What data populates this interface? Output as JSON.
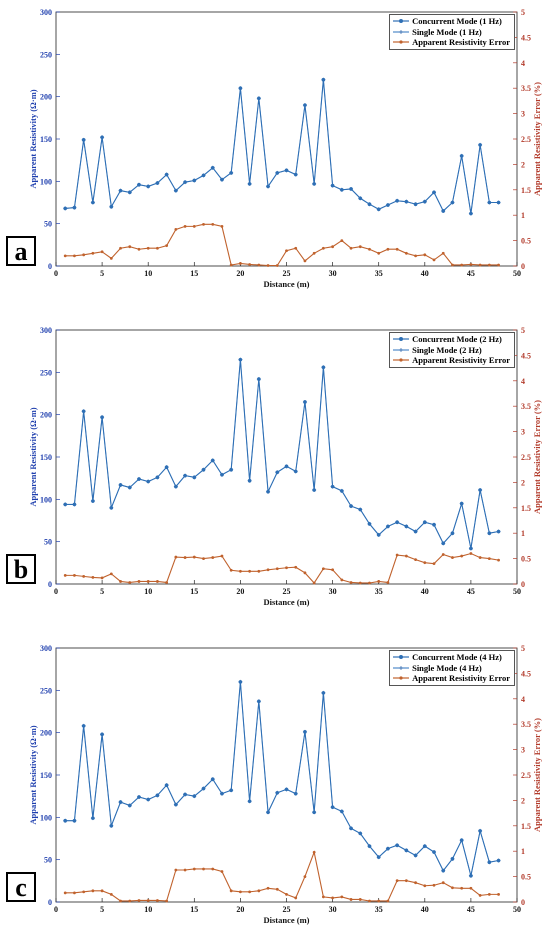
{
  "chart_data": [
    {
      "type": "line",
      "panel_label": "a",
      "xlabel": "Distance (m)",
      "ylabel": "Apparent Resistivity (Ω·m)",
      "y2label": "Apparent Resistivity Error (%)",
      "xlim": [
        0,
        50
      ],
      "ylim": [
        0,
        300
      ],
      "y2lim": [
        0,
        5
      ],
      "x_ticks": [
        0,
        5,
        10,
        15,
        20,
        25,
        30,
        35,
        40,
        45,
        50
      ],
      "y_ticks": [
        0,
        50,
        100,
        150,
        200,
        250,
        300
      ],
      "y2_ticks": [
        0,
        0.5,
        1,
        1.5,
        2,
        2.5,
        3,
        3.5,
        4,
        4.5,
        5
      ],
      "legend_position": "top-right",
      "x": [
        1,
        2,
        3,
        4,
        5,
        6,
        7,
        8,
        9,
        10,
        11,
        12,
        13,
        14,
        15,
        16,
        17,
        18,
        19,
        20,
        21,
        22,
        23,
        24,
        25,
        26,
        27,
        28,
        29,
        30,
        31,
        32,
        33,
        34,
        35,
        36,
        37,
        38,
        39,
        40,
        41,
        42,
        43,
        44,
        45,
        46,
        47,
        48
      ],
      "series": [
        {
          "name": "Concurrent Mode (1 Hz)",
          "axis": "left",
          "color": "#2e6fb5",
          "marker": "circle",
          "values": [
            68,
            69,
            149,
            75,
            152,
            70,
            89,
            87,
            96,
            94,
            98,
            108,
            89,
            99,
            101,
            107,
            116,
            102,
            110,
            210,
            97,
            198,
            94,
            110,
            113,
            108,
            190,
            97,
            220,
            95,
            90,
            91,
            80,
            73,
            67,
            72,
            77,
            76,
            73,
            76,
            87,
            65,
            75,
            130,
            62,
            143,
            75,
            75
          ]
        },
        {
          "name": "Single Mode (1 Hz)",
          "axis": "left",
          "color": "#4f8ac9",
          "marker": "plus",
          "values": [
            68,
            69,
            149,
            75,
            152,
            70,
            89,
            87,
            96,
            94,
            98,
            108,
            89,
            99,
            101,
            107,
            116,
            102,
            110,
            210,
            97,
            198,
            94,
            110,
            113,
            108,
            190,
            97,
            220,
            95,
            90,
            91,
            80,
            73,
            67,
            72,
            77,
            76,
            73,
            76,
            87,
            65,
            75,
            130,
            62,
            143,
            75,
            75
          ]
        },
        {
          "name": "Apparent Resistivity Error",
          "axis": "right",
          "color": "#c0622d",
          "marker": "dot",
          "values": [
            0.2,
            0.2,
            0.22,
            0.25,
            0.28,
            0.15,
            0.35,
            0.38,
            0.33,
            0.35,
            0.35,
            0.4,
            0.72,
            0.78,
            0.78,
            0.82,
            0.82,
            0.78,
            0.02,
            0.05,
            0.03,
            0.02,
            0.01,
            0.01,
            0.3,
            0.35,
            0.1,
            0.25,
            0.35,
            0.38,
            0.5,
            0.35,
            0.38,
            0.33,
            0.25,
            0.33,
            0.33,
            0.25,
            0.2,
            0.22,
            0.12,
            0.25,
            0.02,
            0.02,
            0.03,
            0.02,
            0.02,
            0.02
          ]
        }
      ]
    },
    {
      "type": "line",
      "panel_label": "b",
      "xlabel": "Distance (m)",
      "ylabel": "Apparent Resistivity (Ω·m)",
      "y2label": "Apparent Resistivity Error (%)",
      "xlim": [
        0,
        50
      ],
      "ylim": [
        0,
        300
      ],
      "y2lim": [
        0,
        5
      ],
      "x_ticks": [
        0,
        5,
        10,
        15,
        20,
        25,
        30,
        35,
        40,
        45,
        50
      ],
      "y_ticks": [
        0,
        50,
        100,
        150,
        200,
        250,
        300
      ],
      "y2_ticks": [
        0,
        0.5,
        1,
        1.5,
        2,
        2.5,
        3,
        3.5,
        4,
        4.5,
        5
      ],
      "legend_position": "top-right",
      "x": [
        1,
        2,
        3,
        4,
        5,
        6,
        7,
        8,
        9,
        10,
        11,
        12,
        13,
        14,
        15,
        16,
        17,
        18,
        19,
        20,
        21,
        22,
        23,
        24,
        25,
        26,
        27,
        28,
        29,
        30,
        31,
        32,
        33,
        34,
        35,
        36,
        37,
        38,
        39,
        40,
        41,
        42,
        43,
        44,
        45,
        46,
        47,
        48
      ],
      "series": [
        {
          "name": "Concurrent Mode (2 Hz)",
          "axis": "left",
          "color": "#2e6fb5",
          "marker": "circle",
          "values": [
            94,
            94,
            204,
            98,
            197,
            90,
            117,
            114,
            124,
            121,
            126,
            138,
            115,
            128,
            126,
            135,
            146,
            129,
            135,
            265,
            122,
            242,
            109,
            132,
            139,
            133,
            215,
            111,
            256,
            115,
            110,
            92,
            88,
            71,
            58,
            68,
            73,
            68,
            62,
            73,
            70,
            48,
            60,
            95,
            42,
            111,
            60,
            62
          ]
        },
        {
          "name": "Single Mode (2 Hz)",
          "axis": "left",
          "color": "#4f8ac9",
          "marker": "plus",
          "values": [
            94,
            94,
            204,
            98,
            197,
            90,
            117,
            114,
            124,
            121,
            126,
            138,
            115,
            128,
            126,
            135,
            146,
            129,
            135,
            265,
            122,
            242,
            109,
            132,
            139,
            133,
            215,
            111,
            256,
            115,
            110,
            92,
            88,
            71,
            58,
            68,
            73,
            68,
            62,
            73,
            70,
            48,
            60,
            95,
            42,
            111,
            60,
            62
          ]
        },
        {
          "name": "Apparent Resistivity Error",
          "axis": "right",
          "color": "#c0622d",
          "marker": "dot",
          "values": [
            0.17,
            0.17,
            0.15,
            0.13,
            0.12,
            0.2,
            0.05,
            0.03,
            0.05,
            0.05,
            0.05,
            0.03,
            0.53,
            0.52,
            0.53,
            0.5,
            0.52,
            0.55,
            0.27,
            0.25,
            0.25,
            0.25,
            0.28,
            0.3,
            0.32,
            0.33,
            0.22,
            0.02,
            0.3,
            0.28,
            0.08,
            0.03,
            0.02,
            0.02,
            0.05,
            0.03,
            0.57,
            0.55,
            0.48,
            0.42,
            0.4,
            0.58,
            0.52,
            0.55,
            0.6,
            0.52,
            0.5,
            0.47
          ]
        }
      ]
    },
    {
      "type": "line",
      "panel_label": "c",
      "xlabel": "Distance (m)",
      "ylabel": "Apparent Resistivity (Ω·m)",
      "y2label": "Apparent Resistivity Error (%)",
      "xlim": [
        0,
        50
      ],
      "ylim": [
        0,
        300
      ],
      "y2lim": [
        0,
        5
      ],
      "x_ticks": [
        0,
        5,
        10,
        15,
        20,
        25,
        30,
        35,
        40,
        45,
        50
      ],
      "y_ticks": [
        0,
        50,
        100,
        150,
        200,
        250,
        300
      ],
      "y2_ticks": [
        0,
        0.5,
        1,
        1.5,
        2,
        2.5,
        3,
        3.5,
        4,
        4.5,
        5
      ],
      "legend_position": "top-right",
      "x": [
        1,
        2,
        3,
        4,
        5,
        6,
        7,
        8,
        9,
        10,
        11,
        12,
        13,
        14,
        15,
        16,
        17,
        18,
        19,
        20,
        21,
        22,
        23,
        24,
        25,
        26,
        27,
        28,
        29,
        30,
        31,
        32,
        33,
        34,
        35,
        36,
        37,
        38,
        39,
        40,
        41,
        42,
        43,
        44,
        45,
        46,
        47,
        48
      ],
      "series": [
        {
          "name": "Concurrent Mode (4 Hz)",
          "axis": "left",
          "color": "#2e6fb5",
          "marker": "circle",
          "values": [
            96,
            96,
            208,
            99,
            198,
            90,
            118,
            114,
            124,
            121,
            126,
            138,
            115,
            127,
            125,
            134,
            145,
            128,
            132,
            260,
            119,
            237,
            106,
            129,
            133,
            128,
            201,
            106,
            247,
            112,
            107,
            87,
            81,
            66,
            53,
            63,
            67,
            61,
            55,
            66,
            59,
            37,
            51,
            73,
            31,
            84,
            47,
            49
          ]
        },
        {
          "name": "Single Mode (4 Hz)",
          "axis": "left",
          "color": "#4f8ac9",
          "marker": "plus",
          "values": [
            96,
            96,
            208,
            99,
            198,
            90,
            118,
            114,
            124,
            121,
            126,
            138,
            115,
            127,
            125,
            134,
            145,
            128,
            132,
            260,
            119,
            237,
            106,
            129,
            133,
            128,
            201,
            106,
            247,
            112,
            107,
            87,
            81,
            66,
            53,
            63,
            67,
            61,
            55,
            66,
            59,
            37,
            51,
            73,
            31,
            84,
            47,
            49
          ]
        },
        {
          "name": "Apparent Resistivity Error",
          "axis": "right",
          "color": "#c0622d",
          "marker": "dot",
          "values": [
            0.18,
            0.18,
            0.2,
            0.22,
            0.22,
            0.15,
            0.02,
            0.02,
            0.03,
            0.03,
            0.03,
            0.02,
            0.63,
            0.63,
            0.65,
            0.65,
            0.65,
            0.6,
            0.22,
            0.2,
            0.2,
            0.22,
            0.27,
            0.25,
            0.15,
            0.08,
            0.5,
            0.98,
            0.1,
            0.08,
            0.1,
            0.05,
            0.05,
            0.02,
            0.02,
            0.02,
            0.42,
            0.42,
            0.38,
            0.32,
            0.33,
            0.38,
            0.28,
            0.27,
            0.27,
            0.13,
            0.15,
            0.15
          ]
        }
      ]
    }
  ]
}
